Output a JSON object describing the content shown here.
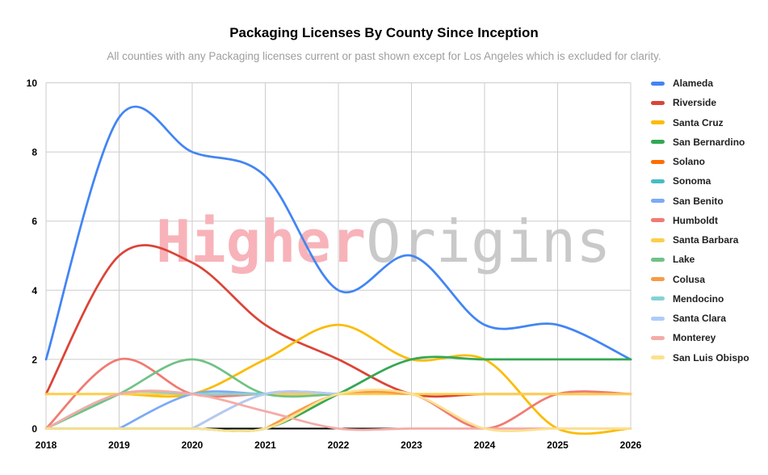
{
  "chart_data": {
    "type": "line",
    "title": "Packaging Licenses By County Since Inception",
    "subtitle": "All counties with any Packaging licenses current or past shown except for Los Angeles which is excluded for clarity.",
    "x": [
      2018,
      2019,
      2020,
      2021,
      2022,
      2023,
      2024,
      2025,
      2026
    ],
    "xticks": [
      "2018",
      "2019",
      "2020",
      "2021",
      "2022",
      "2023",
      "2024",
      "2025",
      "2026"
    ],
    "yticks": [
      0,
      2,
      4,
      6,
      8,
      10
    ],
    "ylim": [
      0,
      10
    ],
    "grid": true,
    "legend_position": "right",
    "watermark": {
      "part1": "Higher",
      "part2": "Origins",
      "color1": "#f7b3b9",
      "color2": "#c9c9c9"
    },
    "series": [
      {
        "name": "Alameda",
        "color": "#4285F4",
        "points": [
          [
            2018,
            2
          ],
          [
            2019,
            9
          ],
          [
            2020,
            8
          ],
          [
            2021,
            7.3
          ],
          [
            2022,
            4
          ],
          [
            2023,
            5
          ],
          [
            2024,
            3
          ],
          [
            2025,
            3
          ],
          [
            2026,
            2
          ]
        ]
      },
      {
        "name": "Riverside",
        "color": "#DB4437",
        "points": [
          [
            2018,
            1
          ],
          [
            2019,
            5
          ],
          [
            2020,
            4.8
          ],
          [
            2021,
            3
          ],
          [
            2022,
            2
          ],
          [
            2023,
            1
          ],
          [
            2024,
            1
          ],
          [
            2025,
            1
          ],
          [
            2026,
            1
          ]
        ]
      },
      {
        "name": "Santa Cruz",
        "color": "#FBBC04",
        "points": [
          [
            2018,
            1
          ],
          [
            2019,
            1
          ],
          [
            2020,
            1
          ],
          [
            2021,
            2
          ],
          [
            2022,
            3
          ],
          [
            2023,
            2
          ],
          [
            2024,
            2
          ],
          [
            2025,
            0
          ],
          [
            2026,
            0
          ]
        ]
      },
      {
        "name": "San Bernardino",
        "color": "#34A853",
        "points": [
          [
            2018,
            0
          ],
          [
            2019,
            0
          ],
          [
            2020,
            0
          ],
          [
            2021,
            0
          ],
          [
            2022,
            1
          ],
          [
            2023,
            2
          ],
          [
            2024,
            2
          ],
          [
            2025,
            2
          ],
          [
            2026,
            2
          ]
        ]
      },
      {
        "name": "Solano",
        "color": "#FF6D01",
        "points": [
          [
            2020,
            0
          ],
          [
            2021,
            1
          ],
          [
            2022,
            1
          ]
        ]
      },
      {
        "name": "Sonoma",
        "color": "#46BDC6",
        "points": [
          [
            2018,
            0
          ],
          [
            2019,
            1
          ],
          [
            2020,
            1
          ],
          [
            2021,
            1
          ],
          [
            2022,
            1
          ]
        ]
      },
      {
        "name": "San Benito",
        "color": "#7BAAF7",
        "points": [
          [
            2019,
            0
          ],
          [
            2020,
            1
          ],
          [
            2021,
            1
          ],
          [
            2022,
            1
          ]
        ]
      },
      {
        "name": "Humboldt",
        "color": "#F07B72",
        "points": [
          [
            2018,
            0
          ],
          [
            2019,
            2
          ],
          [
            2020,
            1
          ],
          [
            2021,
            1
          ],
          [
            2022,
            1
          ],
          [
            2023,
            1
          ],
          [
            2024,
            0
          ],
          [
            2025,
            1
          ],
          [
            2026,
            1
          ]
        ]
      },
      {
        "name": "Santa Barbara",
        "color": "#FCCE4B",
        "points": [
          [
            2018,
            1
          ],
          [
            2019,
            1
          ],
          [
            2020,
            1
          ],
          [
            2021,
            1
          ],
          [
            2022,
            1
          ],
          [
            2023,
            1
          ],
          [
            2024,
            1
          ],
          [
            2025,
            1
          ],
          [
            2026,
            1
          ]
        ]
      },
      {
        "name": "Lake",
        "color": "#71C287",
        "points": [
          [
            2018,
            0
          ],
          [
            2019,
            1
          ],
          [
            2020,
            2
          ],
          [
            2021,
            1
          ],
          [
            2022,
            1
          ]
        ]
      },
      {
        "name": "Colusa",
        "color": "#FA9A47",
        "points": [
          [
            2021,
            0
          ],
          [
            2022,
            1
          ],
          [
            2023,
            1
          ]
        ]
      },
      {
        "name": "Mendocino",
        "color": "#85D2D4",
        "points": [
          [
            2018,
            0
          ],
          [
            2019,
            1
          ],
          [
            2020,
            1
          ],
          [
            2021,
            1
          ]
        ]
      },
      {
        "name": "Santa Clara",
        "color": "#AECBFA",
        "points": [
          [
            2020,
            0
          ],
          [
            2021,
            1
          ],
          [
            2022,
            1
          ]
        ]
      },
      {
        "name": "Monterey",
        "color": "#F3ACA7",
        "points": [
          [
            2018,
            0
          ],
          [
            2019,
            1
          ],
          [
            2020,
            1
          ],
          [
            2021,
            0.5
          ],
          [
            2022,
            0
          ],
          [
            2023,
            0
          ],
          [
            2024,
            0
          ],
          [
            2025,
            0
          ],
          [
            2026,
            0
          ]
        ]
      },
      {
        "name": "San Luis Obispo",
        "color": "#FCE18F",
        "points": [
          [
            2018,
            0
          ],
          [
            2019,
            0
          ],
          [
            2020,
            0
          ],
          [
            2021,
            0
          ],
          [
            2022,
            1
          ],
          [
            2023,
            1
          ],
          [
            2024,
            0
          ],
          [
            2025,
            0
          ],
          [
            2026,
            0
          ]
        ]
      }
    ]
  }
}
